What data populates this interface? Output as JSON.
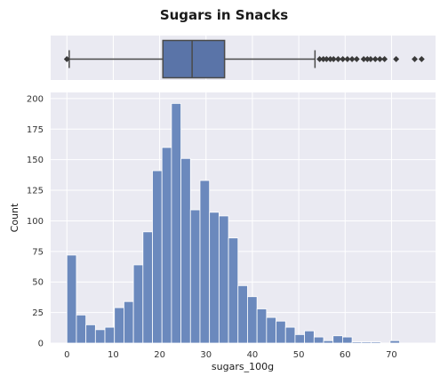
{
  "chart_data": {
    "title": "Sugars in Snacks",
    "type": "histogram_with_boxplot",
    "boxplot": {
      "min": 0.5,
      "q1": 20.7,
      "median": 27.0,
      "q3": 34.0,
      "max": 53.5,
      "outliers": [
        0.0,
        54.5,
        55.3,
        56.0,
        56.8,
        57.5,
        58.5,
        59.5,
        60.5,
        61.5,
        62.5,
        64.0,
        64.8,
        65.5,
        66.5,
        67.5,
        68.5,
        71.0,
        75.0,
        76.5
      ],
      "color": "#5a74a8"
    },
    "histogram": {
      "bin_width": 2.05,
      "bin_start": 0.0,
      "counts": [
        72,
        23,
        15,
        11,
        13,
        29,
        34,
        64,
        91,
        141,
        160,
        196,
        151,
        109,
        133,
        107,
        104,
        86,
        47,
        38,
        28,
        21,
        18,
        13,
        7,
        10,
        5,
        2,
        6,
        5,
        1,
        1,
        1,
        0,
        2
      ],
      "color": "#6b89bd"
    },
    "xlabel": "sugars_100g",
    "ylabel": "Count",
    "xlim": [
      -3.5,
      79.5
    ],
    "ylim": [
      0,
      205
    ],
    "x_ticks": [
      "0",
      "10",
      "20",
      "30",
      "40",
      "50",
      "60",
      "70"
    ],
    "y_ticks": [
      "0",
      "25",
      "50",
      "75",
      "100",
      "125",
      "150",
      "175",
      "200"
    ],
    "grid": true
  }
}
